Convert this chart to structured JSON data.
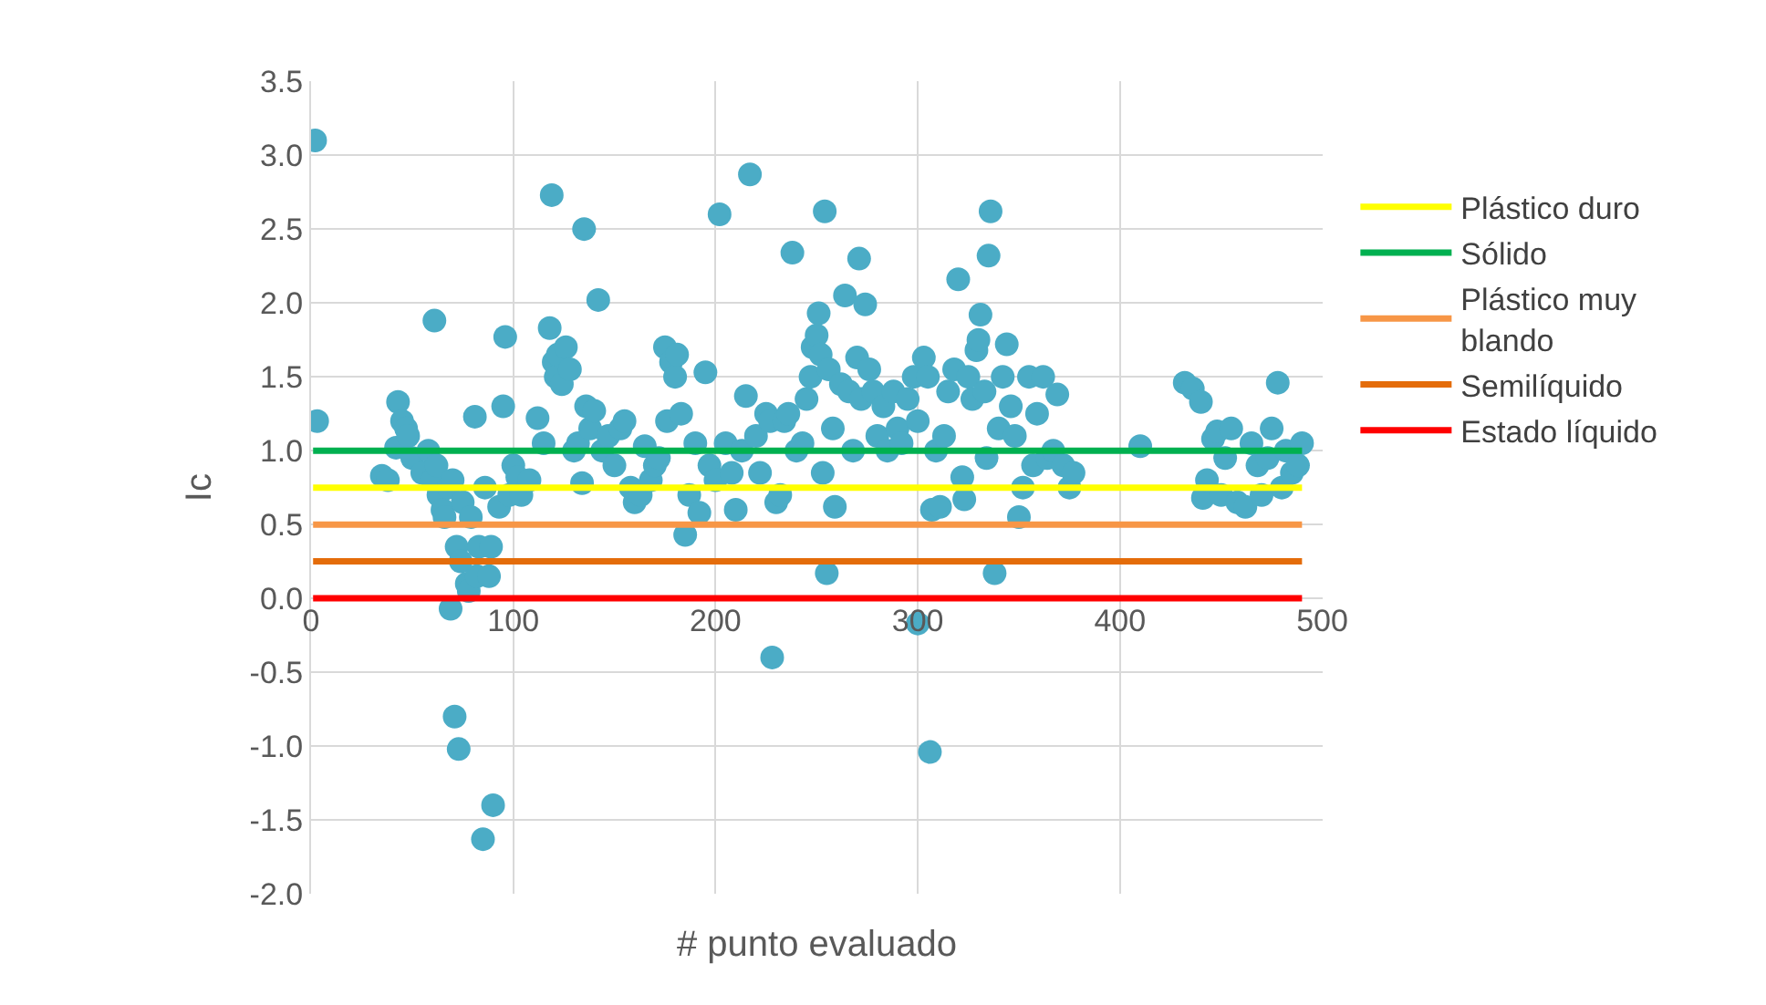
{
  "chart_data": {
    "type": "scatter",
    "xlabel": "# punto evaluado",
    "ylabel": "Ic",
    "xlim": [
      0,
      500
    ],
    "xticks": [
      0,
      100,
      200,
      300,
      400,
      500
    ],
    "ylim": [
      -2.0,
      3.5
    ],
    "yticks": [
      {
        "value": -2,
        "label": "-2.0"
      },
      {
        "value": -1.5,
        "label": "-1.5"
      },
      {
        "value": -1,
        "label": "-1.0"
      },
      {
        "value": -0.5,
        "label": "-0.5"
      },
      {
        "value": 0,
        "label": "0.0"
      },
      {
        "value": 0.5,
        "label": "0.5"
      },
      {
        "value": 1,
        "label": "1.0"
      },
      {
        "value": 1.5,
        "label": "1.5"
      },
      {
        "value": 2,
        "label": "2.0"
      },
      {
        "value": 2.5,
        "label": "2.5"
      },
      {
        "value": 3,
        "label": "3.0"
      },
      {
        "value": 3.5,
        "label": "3.5"
      }
    ],
    "grid": true,
    "legend": "right",
    "series": [
      {
        "marker": "circle",
        "color": "#4bacc6",
        "x": [
          2,
          3,
          35,
          38,
          42,
          43,
          45,
          47,
          48,
          50,
          55,
          58,
          60,
          61,
          62,
          63,
          65,
          66,
          68,
          69,
          70,
          71,
          72,
          73,
          74,
          75,
          77,
          78,
          79,
          81,
          82,
          83,
          85,
          86,
          88,
          89,
          90,
          93,
          95,
          96,
          98,
          100,
          102,
          104,
          108,
          112,
          115,
          118,
          119,
          120,
          121,
          122,
          124,
          126,
          128,
          130,
          132,
          134,
          135,
          136,
          138,
          140,
          142,
          144,
          147,
          150,
          153,
          155,
          158,
          160,
          163,
          165,
          168,
          170,
          172,
          175,
          176,
          178,
          180,
          181,
          183,
          185,
          187,
          190,
          192,
          195,
          197,
          200,
          202,
          205,
          208,
          210,
          213,
          215,
          217,
          220,
          222,
          225,
          227,
          228,
          230,
          232,
          234,
          236,
          238,
          240,
          243,
          245,
          247,
          248,
          250,
          251,
          252,
          253,
          254,
          255,
          256,
          258,
          259,
          262,
          264,
          266,
          268,
          270,
          271,
          272,
          274,
          276,
          278,
          280,
          283,
          285,
          288,
          290,
          292,
          295,
          298,
          300,
          300,
          303,
          305,
          306,
          307,
          309,
          311,
          313,
          315,
          318,
          320,
          322,
          323,
          325,
          327,
          329,
          330,
          331,
          333,
          334,
          335,
          336,
          338,
          340,
          342,
          344,
          346,
          348,
          350,
          352,
          355,
          357,
          359,
          362,
          364,
          367,
          369,
          372,
          375,
          377,
          410,
          432,
          436,
          440,
          441,
          443,
          446,
          448,
          450,
          452,
          455,
          458,
          462,
          465,
          468,
          470,
          473,
          475,
          478,
          480,
          482,
          485,
          488,
          490
        ],
        "values": [
          3.1,
          1.2,
          0.83,
          0.8,
          1.02,
          1.33,
          1.2,
          1.15,
          1.1,
          0.95,
          0.85,
          1.0,
          0.8,
          1.88,
          0.9,
          0.7,
          0.6,
          0.55,
          0.75,
          -0.07,
          0.8,
          -0.8,
          0.35,
          -1.02,
          0.25,
          0.65,
          0.1,
          0.05,
          0.55,
          1.23,
          0.15,
          0.35,
          -1.63,
          0.75,
          0.15,
          0.35,
          -1.4,
          0.62,
          1.3,
          1.77,
          0.7,
          0.9,
          0.82,
          0.7,
          0.8,
          1.22,
          1.05,
          1.83,
          2.73,
          1.6,
          1.5,
          1.65,
          1.45,
          1.7,
          1.55,
          1.0,
          1.05,
          0.78,
          2.5,
          1.3,
          1.15,
          1.27,
          2.02,
          1.0,
          1.1,
          0.9,
          1.15,
          1.2,
          0.75,
          0.65,
          0.7,
          1.03,
          0.8,
          0.9,
          0.95,
          1.7,
          1.2,
          1.6,
          1.5,
          1.65,
          1.25,
          0.43,
          0.7,
          1.05,
          0.58,
          1.53,
          0.9,
          0.8,
          2.6,
          1.05,
          0.85,
          0.6,
          1.0,
          1.37,
          2.87,
          1.1,
          0.85,
          1.25,
          1.2,
          -0.4,
          0.65,
          0.7,
          1.2,
          1.25,
          2.34,
          1.0,
          1.05,
          1.35,
          1.5,
          1.7,
          1.78,
          1.93,
          1.65,
          0.85,
          2.62,
          0.17,
          1.55,
          1.15,
          0.62,
          1.45,
          2.05,
          1.4,
          1.0,
          1.63,
          2.3,
          1.35,
          1.99,
          1.55,
          1.4,
          1.1,
          1.3,
          1.0,
          1.4,
          1.15,
          1.05,
          1.35,
          1.5,
          1.2,
          -0.17,
          1.63,
          1.5,
          -1.04,
          0.6,
          1.0,
          0.62,
          1.1,
          1.4,
          1.55,
          2.16,
          0.82,
          0.67,
          1.5,
          1.35,
          1.68,
          1.75,
          1.92,
          1.4,
          0.95,
          2.32,
          2.62,
          0.17,
          1.15,
          1.5,
          1.72,
          1.3,
          1.1,
          0.55,
          0.75,
          1.5,
          0.9,
          1.25,
          1.5,
          0.95,
          1.0,
          1.38,
          0.9,
          0.75,
          0.85,
          1.03,
          1.46,
          1.42,
          1.33,
          0.68,
          0.8,
          1.08,
          1.13,
          0.7,
          0.95,
          1.15,
          0.65,
          0.62,
          1.05,
          0.9,
          0.7,
          0.95,
          1.15,
          1.46,
          0.75,
          1.0,
          0.85,
          0.9,
          1.05
        ]
      },
      {
        "type": "line",
        "marker": "none",
        "name": "Plástico duro",
        "color": "#ffff00",
        "x": [
          1,
          490
        ],
        "values": [
          0.75,
          0.75
        ]
      },
      {
        "type": "line",
        "marker": "none",
        "name": "Sólido",
        "color": "#00b050",
        "x": [
          1,
          490
        ],
        "values": [
          1.0,
          1.0
        ]
      },
      {
        "type": "line",
        "marker": "none",
        "name": "Plástico muy blando",
        "color": "#f79646",
        "x": [
          1,
          490
        ],
        "values": [
          0.5,
          0.5
        ]
      },
      {
        "type": "line",
        "marker": "none",
        "name": "Semilíquido",
        "color": "#e46c0a",
        "x": [
          1,
          490
        ],
        "values": [
          0.25,
          0.25
        ]
      },
      {
        "type": "line",
        "marker": "none",
        "name": "Estado líquido",
        "color": "#ff0000",
        "x": [
          1,
          490
        ],
        "values": [
          0.0,
          0.0
        ]
      }
    ]
  }
}
